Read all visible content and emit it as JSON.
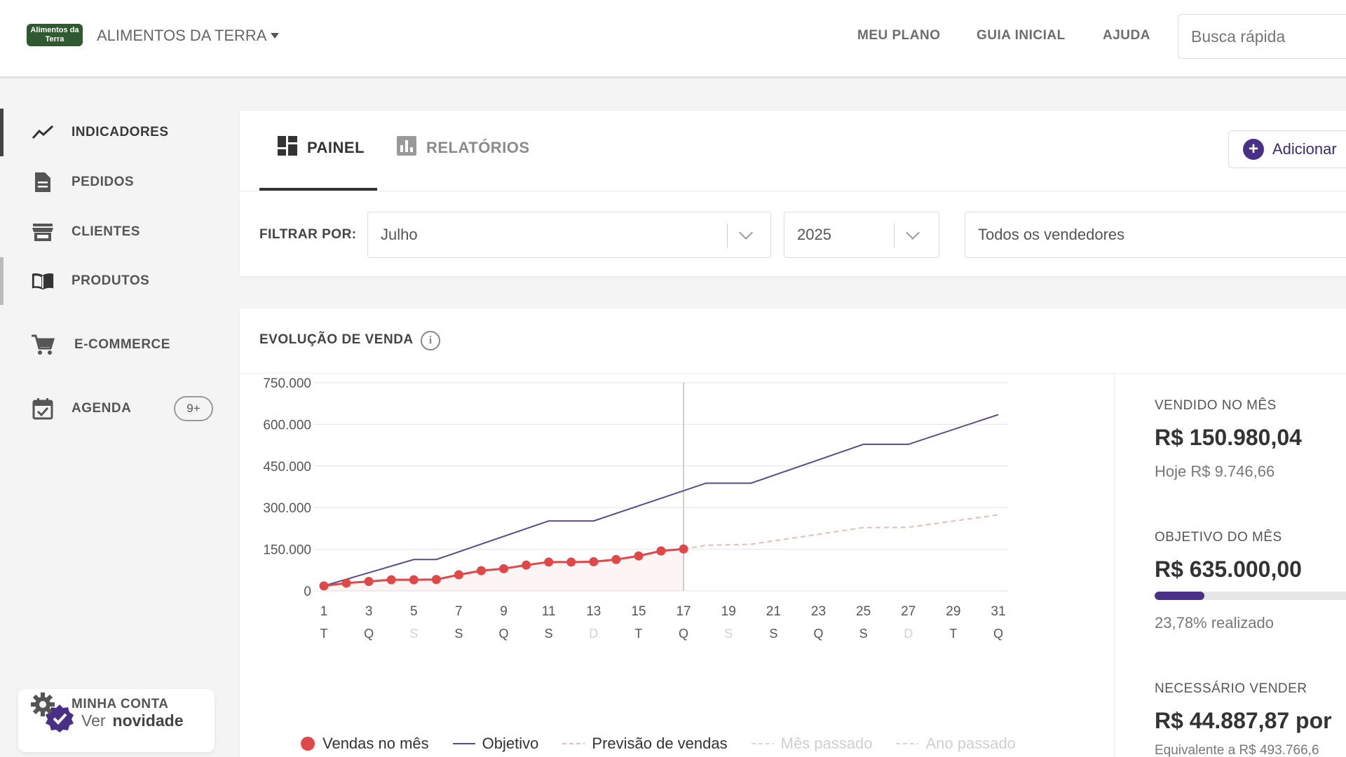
{
  "header": {
    "logo_text": "Alimentos da Terra",
    "company": "ALIMENTOS DA TERRA",
    "nav": [
      "MEU PLANO",
      "GUIA INICIAL",
      "AJUDA"
    ],
    "search_placeholder": "Busca rápida"
  },
  "sidebar": {
    "items": [
      {
        "label": "INDICADORES",
        "icon": "trend-line-icon"
      },
      {
        "label": "PEDIDOS",
        "icon": "document-icon"
      },
      {
        "label": "CLIENTES",
        "icon": "store-icon"
      },
      {
        "label": "PRODUTOS",
        "icon": "book-icon"
      },
      {
        "label": "E-COMMERCE",
        "icon": "cart-icon"
      },
      {
        "label": "AGENDA",
        "icon": "calendar-icon",
        "badge": "9+"
      }
    ],
    "novidade_prefix": "Ver",
    "novidade_bold": "novidade",
    "account": "MINHA CONTA"
  },
  "tabs": [
    {
      "label": "PAINEL",
      "icon": "dashboard-icon"
    },
    {
      "label": "RELATÓRIOS",
      "icon": "bar-chart-icon"
    }
  ],
  "add_button": "Adicionar",
  "filters": {
    "label": "FILTRAR POR:",
    "month": "Julho",
    "year": "2025",
    "seller": "Todos os vendedores"
  },
  "chart_section": {
    "title": "EVOLUÇÃO DE VENDA"
  },
  "metrics": {
    "sold_label": "VENDIDO NO MÊS",
    "sold_value": "R$ 150.980,04",
    "today": "Hoje R$ 9.746,66",
    "goal_label": "OBJETIVO DO MÊS",
    "goal_value": "R$ 635.000,00",
    "progress": 0.2378,
    "progress_text": "23,78% realizado",
    "needed_label": "NECESSÁRIO VENDER",
    "needed_value": "R$ 44.887,87 por",
    "needed_sub": "Equivalente a R$ 493.766,6"
  },
  "colors": {
    "accent": "#4a2f86",
    "sales": "#e04848",
    "goal": "#5a4a8a",
    "forecast": "#e0bfb5",
    "muted": "#d8d8d8"
  },
  "chart_data": {
    "type": "line",
    "ylim": [
      0,
      750000
    ],
    "yticks": [
      "750.000",
      "600.000",
      "450.000",
      "300.000",
      "150.000",
      "0"
    ],
    "yticks_values": [
      750000,
      600000,
      450000,
      300000,
      150000,
      0
    ],
    "x_ticks": [
      "1",
      "3",
      "5",
      "7",
      "9",
      "11",
      "13",
      "15",
      "17",
      "19",
      "21",
      "23",
      "25",
      "27",
      "29",
      "31"
    ],
    "weekday_ticks": [
      "T",
      "Q",
      "S",
      "S",
      "Q",
      "S",
      "D",
      "T",
      "Q",
      "S",
      "S",
      "Q",
      "S",
      "D",
      "T",
      "Q"
    ],
    "weekday_faded": [
      false,
      false,
      true,
      false,
      false,
      false,
      true,
      false,
      false,
      true,
      false,
      false,
      false,
      true,
      false,
      false
    ],
    "current_day": 17,
    "series": [
      {
        "name": "Vendas no mês",
        "style": "dots",
        "x": [
          1,
          2,
          3,
          4,
          5,
          6,
          7,
          8,
          9,
          10,
          11,
          12,
          13,
          14,
          15,
          16,
          17
        ],
        "y": [
          18000,
          28000,
          34000,
          40000,
          40000,
          41000,
          58000,
          73000,
          80000,
          93000,
          104000,
          104000,
          105000,
          113000,
          126000,
          144000,
          150980
        ]
      },
      {
        "name": "Objetivo",
        "style": "solid",
        "x": [
          1,
          5,
          6,
          11,
          13,
          18,
          20,
          25,
          27,
          31
        ],
        "y": [
          18000,
          113000,
          113000,
          252000,
          252000,
          388000,
          388000,
          528000,
          528000,
          635000
        ]
      },
      {
        "name": "Previsão de vendas",
        "style": "dashed",
        "x": [
          17,
          18,
          19,
          20,
          25,
          27,
          31
        ],
        "y": [
          150980,
          164000,
          166000,
          168000,
          228000,
          229000,
          274000
        ]
      },
      {
        "name": "Mês passado",
        "style": "legend-only"
      },
      {
        "name": "Ano passado",
        "style": "legend-only"
      }
    ]
  }
}
